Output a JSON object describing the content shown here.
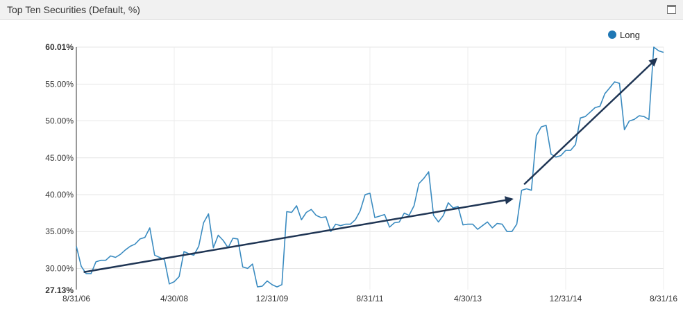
{
  "panel": {
    "title": "Top Ten Securities (Default, %)",
    "maximize_icon": "maximize-window-icon"
  },
  "chart_data": {
    "type": "line",
    "title": "Top Ten Securities (Default, %)",
    "xlabel": "",
    "ylabel": "",
    "ylim": [
      27.13,
      60.01
    ],
    "y_ticks": [
      {
        "value": 30,
        "label": "30.00%"
      },
      {
        "value": 35,
        "label": "35.00%"
      },
      {
        "value": 40,
        "label": "40.00%"
      },
      {
        "value": 45,
        "label": "45.00%"
      },
      {
        "value": 50,
        "label": "50.00%"
      },
      {
        "value": 55,
        "label": "55.00%"
      }
    ],
    "y_max_label": "60.01%",
    "y_min_label": "27.13%",
    "x_ticks": [
      "8/31/06",
      "4/30/08",
      "12/31/09",
      "8/31/11",
      "4/30/13",
      "12/31/14",
      "8/31/16"
    ],
    "x_tick_index": [
      0,
      20,
      40,
      60,
      80,
      100,
      120
    ],
    "grid": true,
    "legend": {
      "position": "top-right",
      "entries": [
        {
          "name": "Long",
          "color": "#1f77b4"
        }
      ]
    },
    "series": [
      {
        "name": "Long",
        "color": "#3a8bc0",
        "values": [
          33.0,
          30.3,
          29.3,
          29.3,
          30.9,
          31.1,
          31.1,
          31.7,
          31.5,
          31.9,
          32.5,
          33.0,
          33.3,
          34.0,
          34.2,
          35.5,
          31.8,
          31.5,
          31.2,
          27.9,
          28.2,
          28.9,
          32.3,
          32.0,
          31.8,
          33.0,
          36.2,
          37.4,
          32.8,
          34.5,
          33.8,
          32.8,
          34.1,
          34.0,
          30.2,
          30.0,
          30.6,
          27.5,
          27.6,
          28.3,
          27.8,
          27.5,
          27.8,
          37.7,
          37.6,
          38.5,
          36.6,
          37.6,
          38.0,
          37.2,
          36.9,
          37.0,
          35.0,
          36.0,
          35.8,
          36.0,
          36.0,
          36.6,
          37.8,
          40.0,
          40.2,
          36.9,
          37.1,
          37.3,
          35.6,
          36.2,
          36.3,
          37.5,
          37.2,
          38.5,
          41.5,
          42.2,
          43.1,
          37.2,
          36.3,
          37.2,
          38.9,
          38.2,
          38.4,
          35.9,
          36.0,
          36.0,
          35.3,
          35.8,
          36.3,
          35.5,
          36.1,
          36.0,
          35.0,
          35.0,
          36.0,
          40.6,
          40.8,
          40.6,
          48.0,
          49.2,
          49.4,
          45.5,
          45.1,
          45.3,
          46.0,
          46.0,
          46.8,
          50.4,
          50.6,
          51.2,
          51.8,
          52.0,
          53.7,
          54.5,
          55.3,
          55.1,
          48.8,
          50.0,
          50.2,
          50.7,
          50.6,
          50.2,
          60.01,
          59.5,
          59.3
        ]
      }
    ],
    "annotations": [
      {
        "type": "arrow",
        "from": {
          "x": 1.5,
          "y": 29.5
        },
        "to": {
          "x": 89,
          "y": 39.4
        }
      },
      {
        "type": "arrow",
        "from": {
          "x": 91.5,
          "y": 41.4
        },
        "to": {
          "x": 118.5,
          "y": 58.4
        }
      }
    ]
  }
}
